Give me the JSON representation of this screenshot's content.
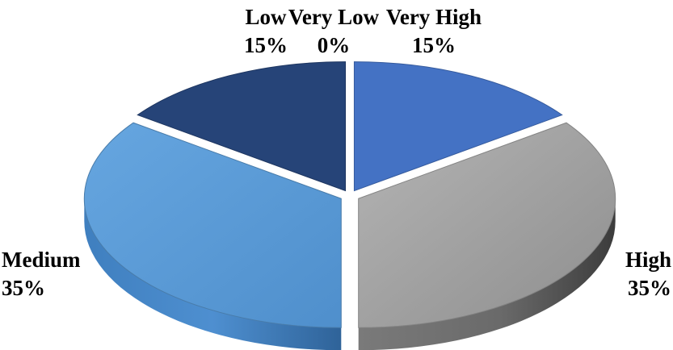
{
  "chart_data": {
    "type": "pie",
    "style": "3d-exploded",
    "title": "",
    "legend": "none",
    "slices": [
      {
        "label": "Very High",
        "value": 15,
        "display": "15%",
        "color": "#4472c4"
      },
      {
        "label": "High",
        "value": 35,
        "display": "35%",
        "color": "#a5a5a5"
      },
      {
        "label": "Medium",
        "value": 35,
        "display": "35%",
        "color": "#5b9bd5"
      },
      {
        "label": "Low",
        "value": 15,
        "display": "15%",
        "color": "#264478"
      },
      {
        "label": "Very Low",
        "value": 0,
        "display": "0%",
        "color": "#1f3864"
      }
    ]
  }
}
